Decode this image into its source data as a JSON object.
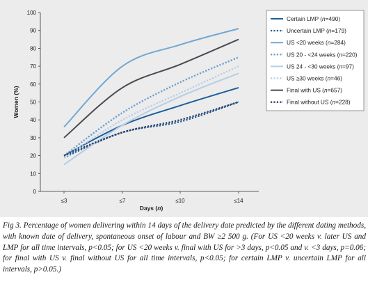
{
  "chart_data": {
    "type": "line",
    "categories": [
      "≤3",
      "≤7",
      "≤10",
      "≤14"
    ],
    "xlabel_parts": [
      "Days (",
      "n",
      ")"
    ],
    "ylabel": "Women (%)",
    "ylim": [
      0,
      100
    ],
    "yticks": [
      0,
      10,
      20,
      30,
      40,
      50,
      60,
      70,
      80,
      90,
      100
    ],
    "grid": false,
    "legend_position": "right",
    "series": [
      {
        "label_main": "Certain LMP (",
        "label_n": "n",
        "label_rest": "=490)",
        "color": "#1c5f9a",
        "dash": "solid",
        "values": [
          20,
          37,
          48,
          58
        ]
      },
      {
        "label_main": "Uncertain LMP (",
        "label_n": "n",
        "label_rest": "=179)",
        "color": "#1c5f9a",
        "dash": "dotted",
        "values": [
          19,
          33,
          39,
          50
        ]
      },
      {
        "label_main": "US <20 weeks (",
        "label_n": "n",
        "label_rest": "=284)",
        "color": "#72a7d2",
        "dash": "solid",
        "values": [
          36,
          70,
          82,
          91
        ]
      },
      {
        "label_main": "US 20 - <24 weeks (",
        "label_n": "n",
        "label_rest": "=220)",
        "color": "#6e9fcd",
        "dash": "dotted",
        "values": [
          20,
          44,
          61,
          75
        ]
      },
      {
        "label_main": "US 24 - <30 weeks (",
        "label_n": "n",
        "label_rest": "=97)",
        "color": "#b6cde4",
        "dash": "solid",
        "values": [
          15,
          37,
          53,
          66
        ]
      },
      {
        "label_main": "US ≥30 weeks (",
        "label_n": "n",
        "label_rest": "=46)",
        "color": "#b9cfe6",
        "dash": "dotted",
        "values": [
          19,
          40,
          55,
          70
        ]
      },
      {
        "label_main": "Final with US (",
        "label_n": "n",
        "label_rest": "=657)",
        "color": "#4a4a55",
        "dash": "solid",
        "values": [
          30,
          58,
          71,
          85
        ]
      },
      {
        "label_main": "Final without US (",
        "label_n": "n",
        "label_rest": "=228)",
        "color": "#2f3d66",
        "dash": "dotted",
        "values": [
          20,
          33,
          40,
          50
        ]
      }
    ]
  },
  "caption": {
    "text": "Fig 3. Percentage of women delivering within 14 days of the delivery date predicted by the different dating methods, with known date of delivery, spontaneous onset of labour and BW ≥2 500 g. (For US <20 weeks v. later US and LMP for all time intervals, p<0.05; for US <20 weeks v. final with US for >3 days, p<0.05 and v. <3 days, p=0.06; for final with US v. final without US for all time intervals, p<0.05; for certain LMP v. uncertain LMP for all intervals, p>0.05.)"
  }
}
